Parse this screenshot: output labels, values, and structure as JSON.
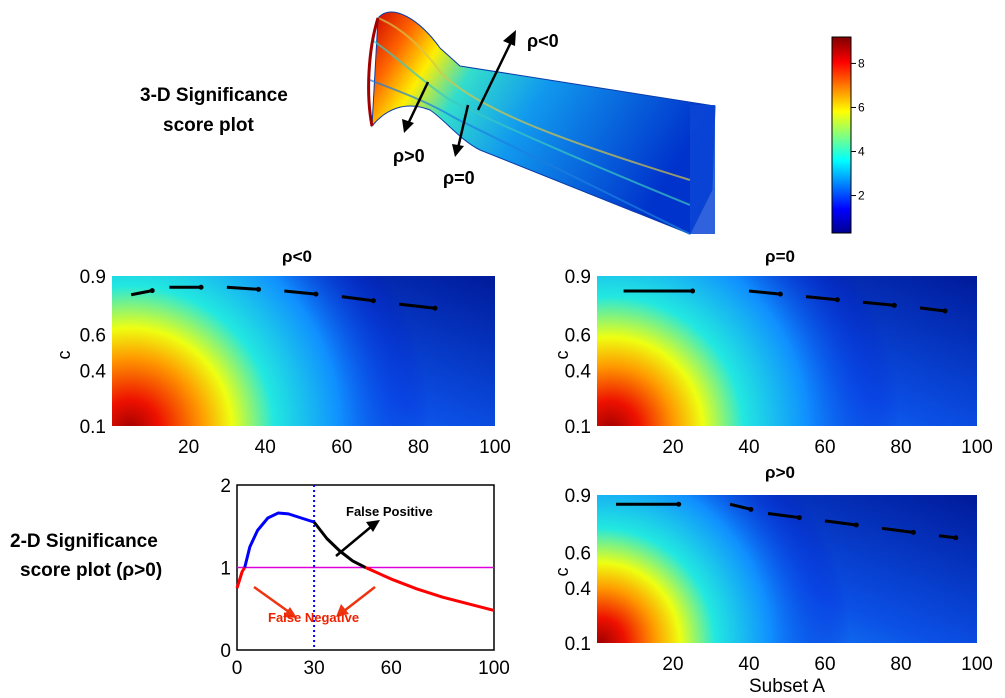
{
  "figure": {
    "surface_caption": [
      "3-D Significance",
      "score plot"
    ],
    "line_caption": [
      "2-D Significance",
      "score plot (ρ>0)"
    ],
    "surface_labels": {
      "neg": "ρ<0",
      "pos": "ρ>0",
      "zero": "ρ=0"
    },
    "colorbar": {
      "ticks": [
        2,
        4,
        6,
        8
      ],
      "range": [
        0.3,
        9.2
      ]
    }
  },
  "chart_data": [
    {
      "type": "heatmap",
      "title": "ρ<0",
      "ylabel": "c",
      "xlabel": "",
      "xlim": [
        0,
        100
      ],
      "xticks": [
        20,
        40,
        60,
        80,
        100
      ],
      "yticks": [
        "0.1",
        "0.4",
        "0.6",
        "0.9"
      ],
      "max_value_location": {
        "x": 12,
        "c": 0.1
      },
      "ridge": [
        [
          5,
          0.8
        ],
        [
          15,
          0.84
        ],
        [
          30,
          0.84
        ],
        [
          45,
          0.82
        ],
        [
          60,
          0.79
        ],
        [
          75,
          0.75
        ],
        [
          92,
          0.71
        ]
      ]
    },
    {
      "type": "heatmap",
      "title": "ρ=0",
      "ylabel": "c",
      "xlabel": "",
      "xlim": [
        0,
        100
      ],
      "xticks": [
        20,
        40,
        60,
        80,
        100
      ],
      "yticks": [
        "0.1",
        "0.4",
        "0.6",
        "0.9"
      ],
      "max_value_location": {
        "x": 10,
        "c": 0.1
      },
      "ridge": [
        [
          7,
          0.82
        ],
        [
          40,
          0.82
        ],
        [
          55,
          0.79
        ],
        [
          70,
          0.76
        ],
        [
          85,
          0.73
        ],
        [
          97,
          0.7
        ]
      ]
    },
    {
      "type": "line",
      "title": "",
      "xlabel": "",
      "ylabel": "",
      "xlim": [
        0,
        100
      ],
      "ylim": [
        0,
        2
      ],
      "xticks": [
        0,
        30,
        60,
        100
      ],
      "yticks": [
        0,
        1,
        2
      ],
      "threshold": 1,
      "vertical_marker": 30,
      "series": [
        {
          "color": "#ff0000",
          "x": [
            0,
            1,
            2,
            3
          ],
          "y": [
            0.75,
            0.85,
            0.95,
            1.0
          ]
        },
        {
          "color": "#0000ff",
          "x": [
            3,
            5,
            8,
            12,
            16,
            20,
            25,
            30
          ],
          "y": [
            1.0,
            1.25,
            1.45,
            1.6,
            1.66,
            1.65,
            1.6,
            1.55
          ]
        },
        {
          "color": "#000000",
          "x": [
            30,
            35,
            40,
            45,
            50
          ],
          "y": [
            1.55,
            1.35,
            1.2,
            1.08,
            1.0
          ]
        },
        {
          "color": "#ff0000",
          "x": [
            50,
            60,
            70,
            80,
            90,
            100
          ],
          "y": [
            1.0,
            0.86,
            0.74,
            0.64,
            0.56,
            0.48
          ]
        }
      ],
      "annotations": {
        "false_positive": "False Positive",
        "false_negative": "False Negative"
      }
    },
    {
      "type": "heatmap",
      "title": "ρ>0",
      "ylabel": "c",
      "xlabel": "Subset A",
      "xlim": [
        0,
        100
      ],
      "xticks": [
        20,
        40,
        60,
        80,
        100
      ],
      "yticks": [
        "0.1",
        "0.4",
        "0.6",
        "0.9"
      ],
      "max_value_location": {
        "x": 8,
        "c": 0.1
      },
      "ridge": [
        [
          5,
          0.85
        ],
        [
          35,
          0.85
        ],
        [
          45,
          0.8
        ],
        [
          60,
          0.76
        ],
        [
          75,
          0.72
        ],
        [
          90,
          0.68
        ],
        [
          98,
          0.66
        ]
      ]
    }
  ]
}
